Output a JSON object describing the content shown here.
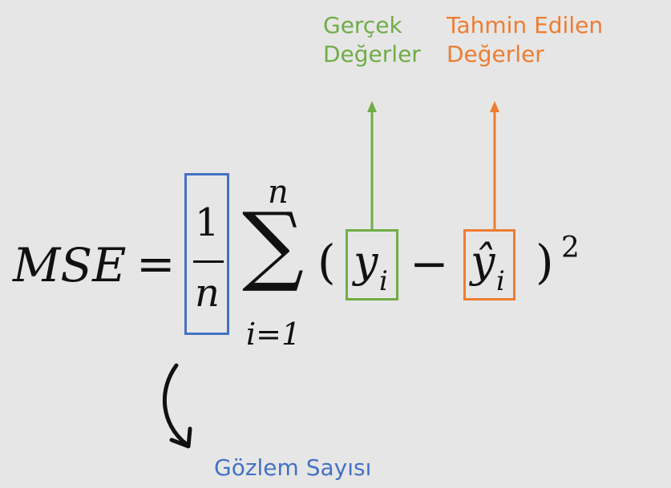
{
  "formula": {
    "lhs": "MSE",
    "equals": "=",
    "numerator": "1",
    "denominator": "n",
    "sum_symbol": "∑",
    "sum_upper": "n",
    "sum_lower": "i=1",
    "open_paren": "(",
    "actual_symbol": "y",
    "actual_subscript": "i",
    "minus": "−",
    "predicted_symbol": "ŷ",
    "predicted_subscript": "i",
    "close_paren": ")",
    "exponent": "2"
  },
  "annotations": {
    "actual_line1": "Gerçek",
    "actual_line2": "Değerler",
    "predicted_line1": "Tahmin Edilen",
    "predicted_line2": "Değerler",
    "observations": "Gözlem Sayısı"
  },
  "colors": {
    "background": "#e6e6e6",
    "actual": "#70ad47",
    "predicted": "#ed7d31",
    "observations": "#4472c4"
  }
}
